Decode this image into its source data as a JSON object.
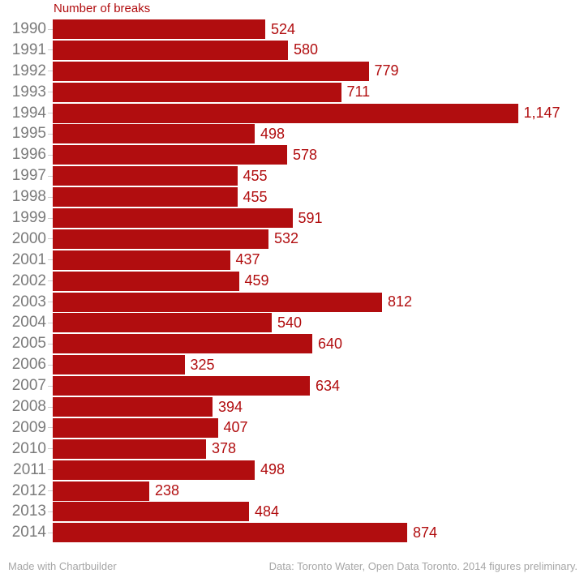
{
  "colors": {
    "bar": "#b10d0f",
    "value_label": "#b10d0f",
    "year_label": "#7b7b7b",
    "tick": "#cccccc",
    "footer_text": "#a6a6a6",
    "background": "#ffffff"
  },
  "chart_data": {
    "type": "bar",
    "orientation": "horizontal",
    "title": "Number of breaks",
    "categories": [
      "1990",
      "1991",
      "1992",
      "1993",
      "1994",
      "1995",
      "1996",
      "1997",
      "1998",
      "1999",
      "2000",
      "2001",
      "2002",
      "2003",
      "2004",
      "2005",
      "2006",
      "2007",
      "2008",
      "2009",
      "2010",
      "2011",
      "2012",
      "2013",
      "2014"
    ],
    "values": [
      524,
      580,
      779,
      711,
      1147,
      498,
      578,
      455,
      455,
      591,
      532,
      437,
      459,
      812,
      540,
      640,
      325,
      634,
      394,
      407,
      378,
      498,
      238,
      484,
      874
    ],
    "value_labels": [
      "524",
      "580",
      "779",
      "711",
      "1,147",
      "498",
      "578",
      "455",
      "455",
      "591",
      "532",
      "437",
      "459",
      "812",
      "540",
      "640",
      "325",
      "634",
      "394",
      "407",
      "378",
      "498",
      "238",
      "484",
      "874"
    ],
    "xlabel": "",
    "ylabel": "",
    "xlim": [
      0,
      1200
    ],
    "grid": false,
    "legend": "none",
    "bar_color": "#b10d0f"
  },
  "footer": {
    "left": "Made with Chartbuilder",
    "right": "Data: Toronto Water, Open Data Toronto. 2014 figures preliminary."
  }
}
